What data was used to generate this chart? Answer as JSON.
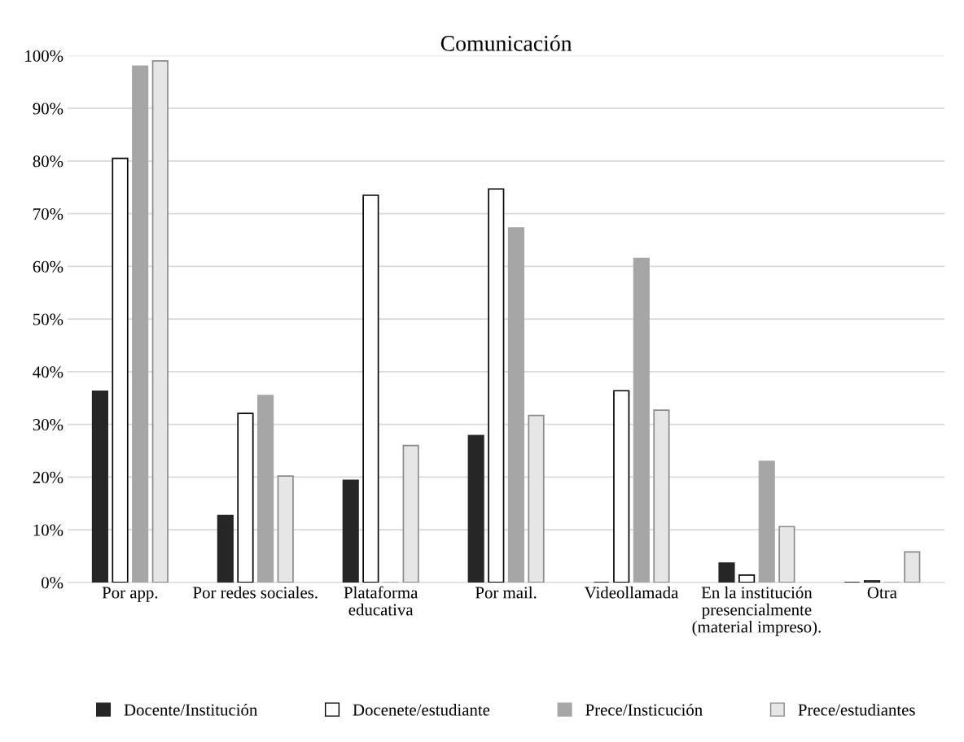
{
  "chart_data": {
    "type": "bar",
    "title": "Comunicación",
    "categories": [
      "Por app.",
      "Por redes sociales.",
      "Plataforma educativa",
      "Por mail.",
      "Videollamada",
      "En la institución presencialmente (material impreso).",
      "Otra"
    ],
    "series": [
      {
        "name": "Docente/Institución",
        "color": "#262626",
        "values": [
          36.3,
          12.7,
          19.4,
          27.9,
          0,
          3.7,
          0
        ]
      },
      {
        "name": "Docenete/estudiante",
        "color": "#ffffff",
        "values": [
          80.5,
          32.1,
          73.5,
          74.7,
          36.4,
          1.4,
          0.3
        ]
      },
      {
        "name": "Prece/Insticución",
        "color": "#a6a6a6",
        "values": [
          98,
          35.5,
          0,
          67.3,
          61.5,
          23.0,
          0
        ]
      },
      {
        "name": "Prece/estudiantes",
        "color": "#e7e6e6",
        "values": [
          99,
          20.2,
          26.0,
          31.7,
          32.7,
          10.6,
          5.8
        ]
      }
    ],
    "ylim": [
      0,
      100
    ],
    "yticks": [
      {
        "value": 0,
        "label": "0%"
      },
      {
        "value": 10,
        "label": "10%"
      },
      {
        "value": 20,
        "label": "20%"
      },
      {
        "value": 30,
        "label": "30%"
      },
      {
        "value": 40,
        "label": "40%"
      },
      {
        "value": 50,
        "label": "50%"
      },
      {
        "value": 60,
        "label": "60%"
      },
      {
        "value": 70,
        "label": "70%"
      },
      {
        "value": 80,
        "label": "80%"
      },
      {
        "value": 90,
        "label": "90%"
      },
      {
        "value": 100,
        "label": "100%"
      }
    ],
    "grid": "y",
    "legend": "bottom"
  }
}
